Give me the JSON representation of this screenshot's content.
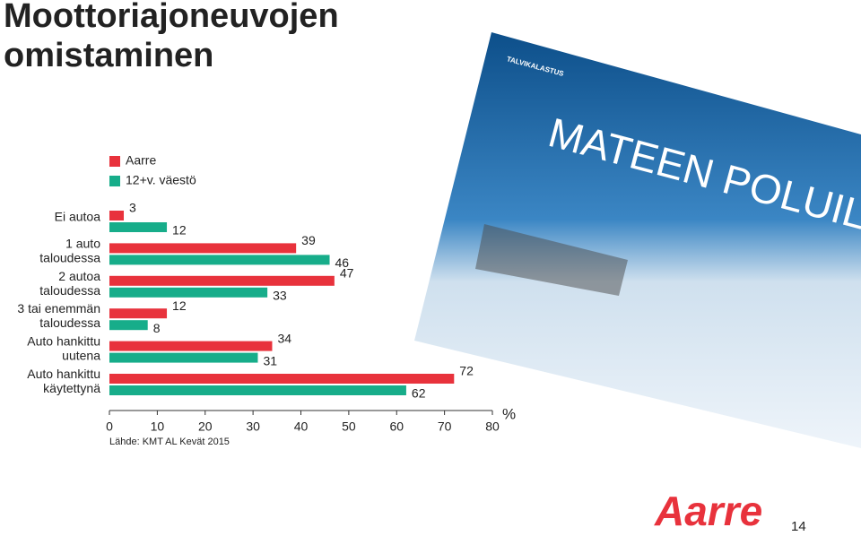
{
  "slide": {
    "title": "Moottoriajoneuvojen omistaminen",
    "page_number": "14",
    "logo": "Aarre",
    "magazine": {
      "section": "TALVIKALASTUS",
      "headline": "MATEEN POLUIL"
    }
  },
  "chart_data": {
    "type": "hbar",
    "categories": [
      "Ei autoa",
      "1 auto taloudessa",
      "2 autoa taloudessa",
      "3 tai enemmän taloudessa",
      "Auto hankittu uutena",
      "Auto hankittu käytettynä"
    ],
    "series": [
      {
        "name": "Aarre",
        "color": "#e8323c",
        "values": [
          3,
          39,
          47,
          12,
          34,
          72
        ]
      },
      {
        "name": "12+v. väestö",
        "color": "#17ad8a",
        "values": [
          12,
          46,
          33,
          8,
          31,
          62
        ]
      }
    ],
    "xlim": [
      0,
      80
    ],
    "xticks": [
      0,
      10,
      20,
      30,
      40,
      50,
      60,
      70,
      80
    ],
    "x_label": "%",
    "source": "Lähde: KMT AL Kevät 2015"
  }
}
